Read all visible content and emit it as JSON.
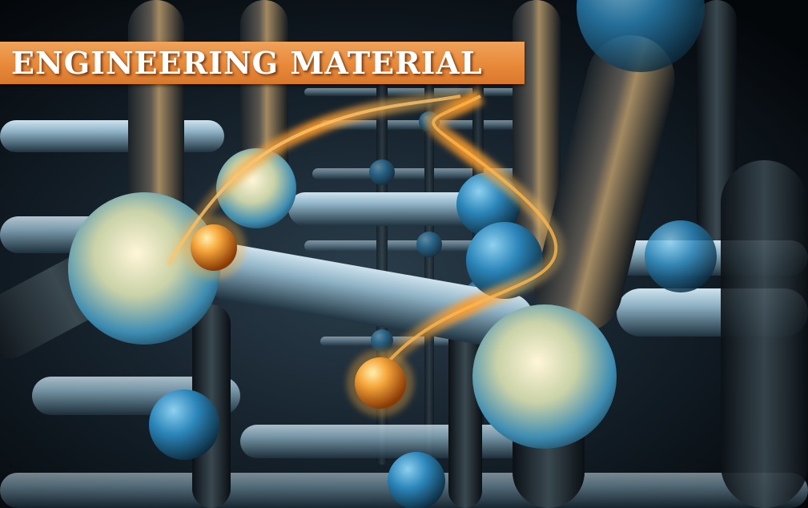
{
  "banner": {
    "title": "ENGINEERING MATERIAL",
    "background_color": "#e8893a",
    "text_color": "#ffffff"
  },
  "scene": {
    "description_icon": "molecular-lattice-illustration",
    "accent_color": "#f2a13a",
    "sphere_color": "#2a7fb0"
  }
}
